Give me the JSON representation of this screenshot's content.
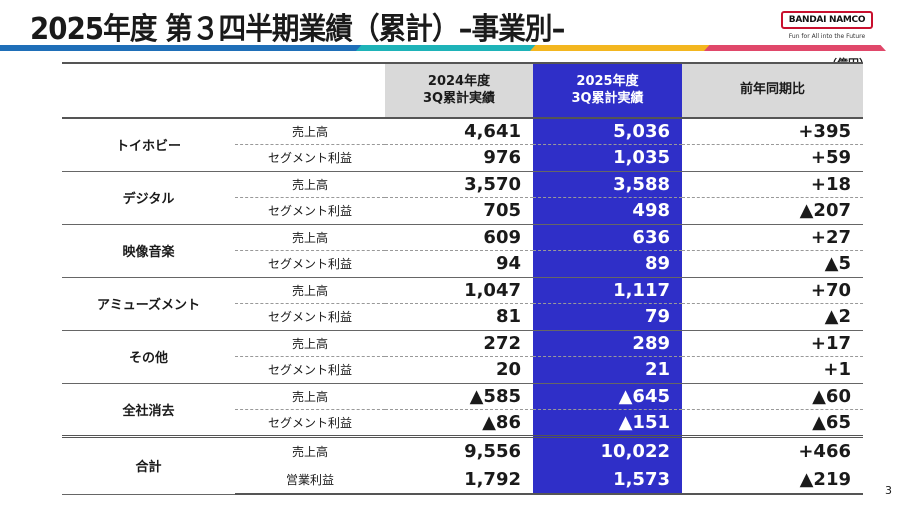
{
  "title": "2025年度 第３四半期業績（累計）–事業別–",
  "logo": {
    "name": "BANDAI NAMCO",
    "tagline": "Fun for All into the Future"
  },
  "colors": {
    "accent": "#2f2fc8",
    "stripe": [
      "#1f6fb8",
      "#1eb3b8",
      "#f3b61f",
      "#e0486a"
    ]
  },
  "unit": "（億円）",
  "headers": {
    "prev": [
      "2024年度",
      "3Q累計実績"
    ],
    "cur": [
      "2025年度",
      "3Q累計実績"
    ],
    "diff": "前年同期比"
  },
  "segments": [
    {
      "name": "トイホビー",
      "rows": [
        {
          "label": "売上高",
          "prev": "4,641",
          "cur": "5,036",
          "diff": "+395"
        },
        {
          "label": "セグメント利益",
          "prev": "976",
          "cur": "1,035",
          "diff": "+59"
        }
      ]
    },
    {
      "name": "デジタル",
      "rows": [
        {
          "label": "売上高",
          "prev": "3,570",
          "cur": "3,588",
          "diff": "+18"
        },
        {
          "label": "セグメント利益",
          "prev": "705",
          "cur": "498",
          "diff": "▲207"
        }
      ]
    },
    {
      "name": "映像音楽",
      "rows": [
        {
          "label": "売上高",
          "prev": "609",
          "cur": "636",
          "diff": "+27"
        },
        {
          "label": "セグメント利益",
          "prev": "94",
          "cur": "89",
          "diff": "▲5"
        }
      ]
    },
    {
      "name": "アミューズメント",
      "rows": [
        {
          "label": "売上高",
          "prev": "1,047",
          "cur": "1,117",
          "diff": "+70"
        },
        {
          "label": "セグメント利益",
          "prev": "81",
          "cur": "79",
          "diff": "▲2"
        }
      ]
    },
    {
      "name": "その他",
      "rows": [
        {
          "label": "売上高",
          "prev": "272",
          "cur": "289",
          "diff": "+17"
        },
        {
          "label": "セグメント利益",
          "prev": "20",
          "cur": "21",
          "diff": "+1"
        }
      ]
    },
    {
      "name": "全社消去",
      "rows": [
        {
          "label": "売上高",
          "prev": "▲585",
          "cur": "▲645",
          "diff": "▲60"
        },
        {
          "label": "セグメント利益",
          "prev": "▲86",
          "cur": "▲151",
          "diff": "▲65"
        }
      ]
    },
    {
      "name": "合計",
      "rows": [
        {
          "label": "売上高",
          "prev": "9,556",
          "cur": "10,022",
          "diff": "+466"
        },
        {
          "label": "営業利益",
          "prev": "1,792",
          "cur": "1,573",
          "diff": "▲219"
        }
      ]
    }
  ],
  "page_number": "3"
}
